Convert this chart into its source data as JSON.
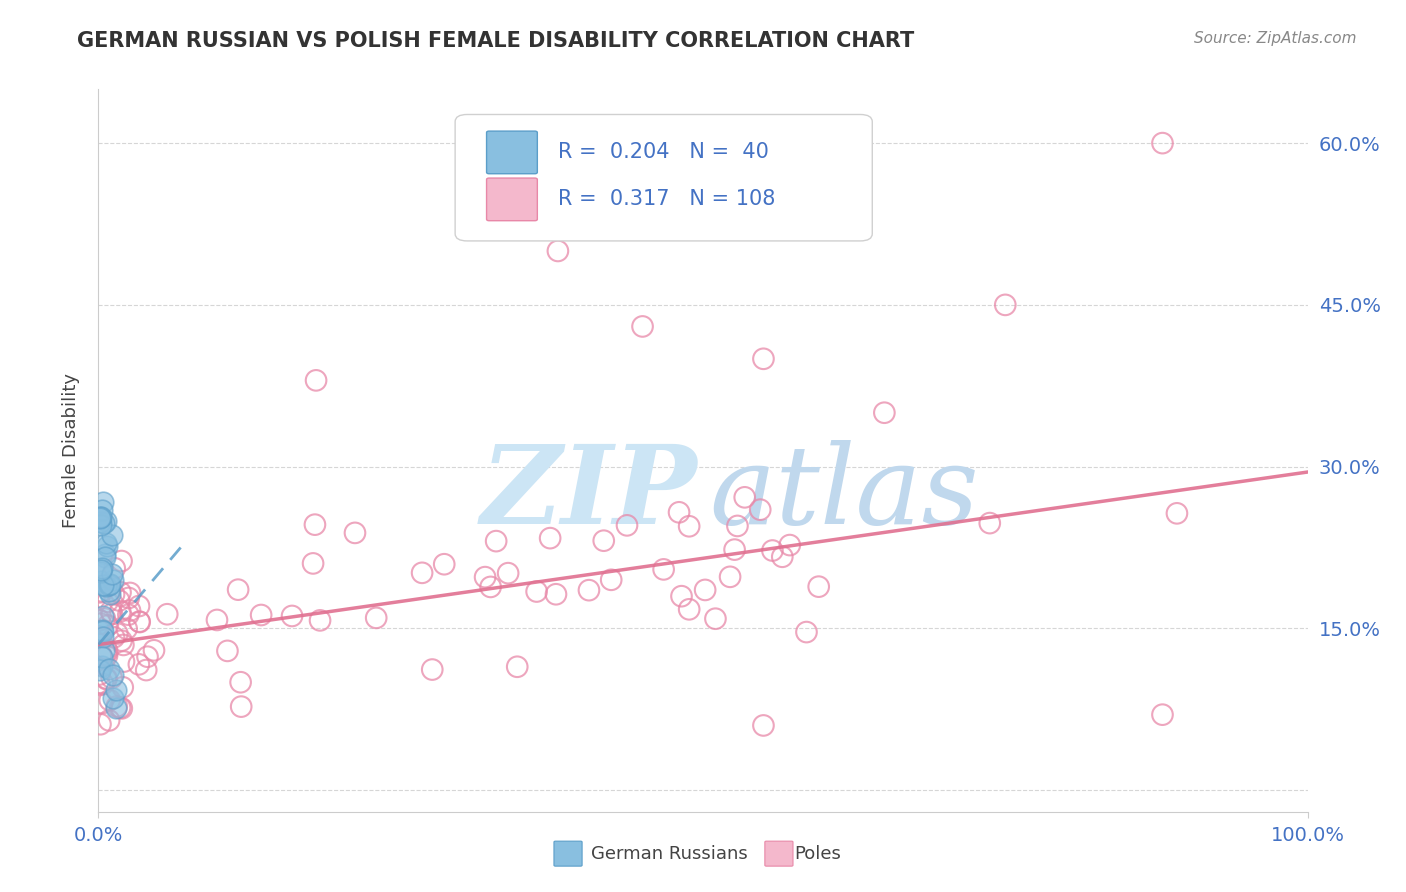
{
  "title": "GERMAN RUSSIAN VS POLISH FEMALE DISABILITY CORRELATION CHART",
  "source_text": "Source: ZipAtlas.com",
  "ylabel": "Female Disability",
  "xlim": [
    0,
    1.0
  ],
  "ylim": [
    -0.02,
    0.65
  ],
  "yticks": [
    0.0,
    0.15,
    0.3,
    0.45,
    0.6
  ],
  "ytick_labels": [
    "",
    "15.0%",
    "30.0%",
    "45.0%",
    "60.0%"
  ],
  "r_german": 0.204,
  "n_german": 40,
  "r_polish": 0.317,
  "n_polish": 108,
  "german_color": "#89bfe0",
  "german_edge_color": "#5b9ec9",
  "polish_color": "#f4b8cc",
  "polish_edge_color": "#e888a8",
  "trend_german_color": "#5b9ec9",
  "trend_polish_color": "#e07090",
  "background_color": "#ffffff",
  "watermark_zip_color": "#cce5f5",
  "watermark_atlas_color": "#c0d8ed",
  "legend_box_color": "#f0f0f0",
  "tick_label_color": "#4472c4",
  "title_color": "#333333",
  "source_color": "#888888",
  "ylabel_color": "#444444",
  "grid_color": "#cccccc"
}
